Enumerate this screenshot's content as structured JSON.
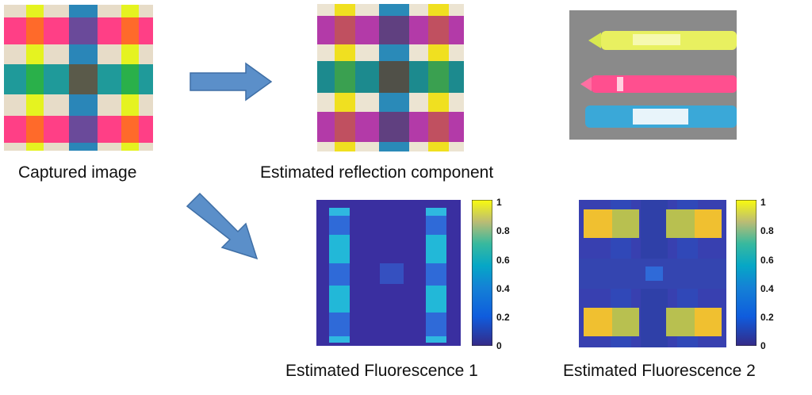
{
  "captions": {
    "captured": "Captured image",
    "reflection": "Estimated reflection component",
    "fluorescence1": "Estimated Fluorescence 1",
    "fluorescence2": "Estimated Fluorescence 2"
  },
  "colorbar": {
    "ticks": [
      "1",
      "0.8",
      "0.6",
      "0.4",
      "0.2",
      "0"
    ],
    "colormap": "parula"
  },
  "palette": {
    "arrow": "#5b8fc9",
    "map_background": "#3a2fa0",
    "marker_yellow": "#e8f020",
    "marker_pink": "#ff3d7f",
    "marker_blue": "#2a8fc0"
  }
}
